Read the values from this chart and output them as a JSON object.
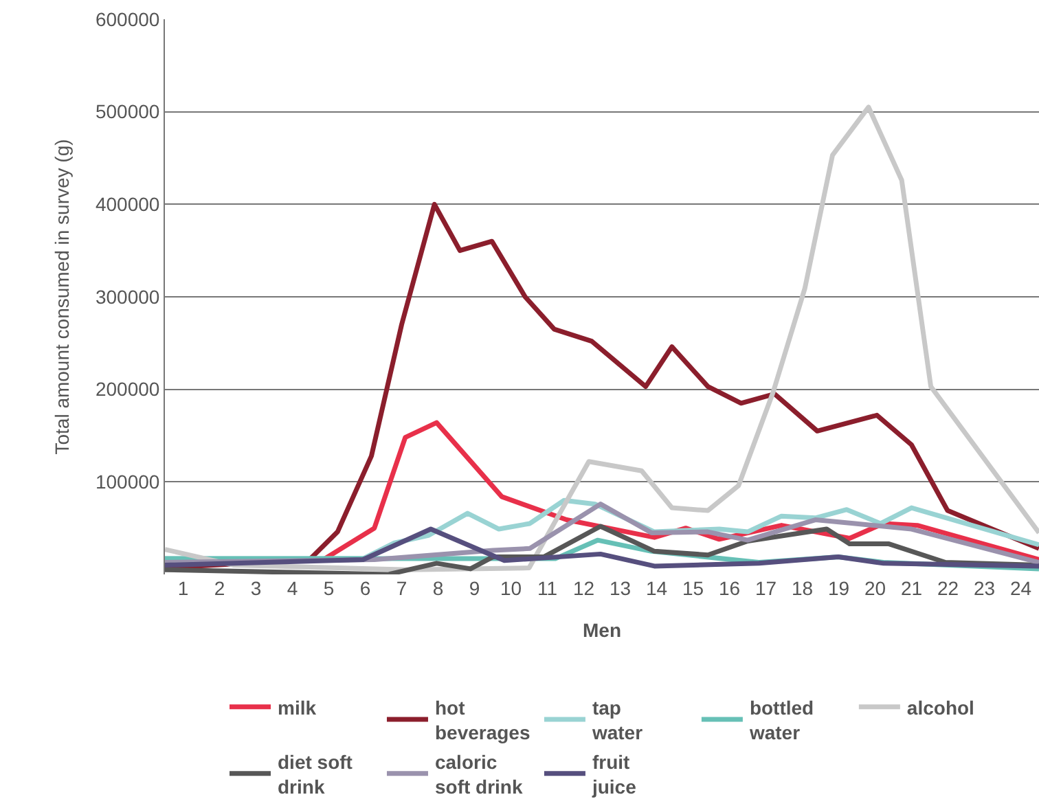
{
  "chart_data": {
    "type": "line",
    "xlabel": "Men",
    "ylabel": "Total amount consumed in survey (g)",
    "xlim": [
      0.5,
      24.5
    ],
    "xticks": [
      1,
      2,
      3,
      4,
      5,
      6,
      7,
      8,
      9,
      10,
      11,
      12,
      13,
      14,
      15,
      16,
      17,
      18,
      19,
      20,
      21,
      22,
      23,
      24
    ],
    "ylim": [
      0,
      600000
    ],
    "yticks": [
      100000,
      200000,
      300000,
      400000,
      500000,
      600000
    ],
    "grid": "y",
    "legend": "bottom",
    "marker": "none",
    "line_style": "solid",
    "series": [
      {
        "name": "milk",
        "color": "#e8304a",
        "x": [
          0.5,
          4.85,
          6.25,
          7.1,
          7.96,
          9.75,
          11.53,
          13.94,
          14.8,
          15.72,
          17.43,
          19.3,
          20.23,
          21.16,
          24.5
        ],
        "values": [
          16000,
          16000,
          50000,
          148000,
          164000,
          84000,
          59000,
          40000,
          50000,
          38000,
          53000,
          39000,
          55000,
          53000,
          16000
        ]
      },
      {
        "name": "hot\nbeverages",
        "color": "#8b1e2c",
        "x": [
          0.5,
          4.47,
          5.24,
          6.17,
          7.0,
          7.9,
          8.6,
          9.48,
          10.39,
          11.19,
          12.22,
          13.7,
          14.42,
          15.41,
          16.32,
          17.24,
          18.41,
          20.05,
          21.0,
          21.99,
          24.5
        ],
        "values": [
          7000,
          16000,
          46000,
          128000,
          270000,
          400000,
          350000,
          360000,
          300000,
          265000,
          252000,
          203000,
          246000,
          203000,
          185000,
          195000,
          155000,
          172000,
          140000,
          69000,
          28000
        ]
      },
      {
        "name": "tap\nwater",
        "color": "#99d3d3",
        "x": [
          0.5,
          5.94,
          6.8,
          7.73,
          8.81,
          9.67,
          10.52,
          11.46,
          12.31,
          13.94,
          15.72,
          16.5,
          17.43,
          18.36,
          19.22,
          20.15,
          21.0,
          24.5
        ],
        "values": [
          17000,
          17000,
          34000,
          42000,
          66000,
          49000,
          55000,
          80000,
          76000,
          46000,
          49000,
          46000,
          63000,
          61000,
          70000,
          55000,
          72000,
          32000
        ]
      },
      {
        "name": "bottled\nwater",
        "color": "#66c0b6",
        "x": [
          0.5,
          11.22,
          12.38,
          13.86,
          16.81,
          18.99,
          20.23,
          24.5
        ],
        "values": [
          17000,
          17000,
          37000,
          25000,
          13000,
          19000,
          13000,
          6000
        ]
      },
      {
        "name": "alcohol",
        "color": "#c8c8c8",
        "x": [
          0.5,
          2.4,
          7.2,
          10.5,
          12.14,
          13.59,
          14.42,
          15.41,
          16.25,
          17.2,
          18.07,
          18.83,
          19.82,
          20.73,
          21.53,
          24.5
        ],
        "values": [
          27000,
          10000,
          5000,
          7000,
          122000,
          112000,
          72000,
          69000,
          96000,
          197000,
          309000,
          453000,
          505000,
          426000,
          203000,
          45000
        ]
      },
      {
        "name": "diet soft\ndrink",
        "color": "#575757",
        "x": [
          0.5,
          6.64,
          7.96,
          8.89,
          9.51,
          10.91,
          12.46,
          13.94,
          15.41,
          16.5,
          18.67,
          19.3,
          20.38,
          21.93,
          24.5
        ],
        "values": [
          5000,
          0,
          12000,
          6000,
          19000,
          19000,
          52000,
          25000,
          21000,
          36000,
          49000,
          33000,
          33000,
          13000,
          10000
        ]
      },
      {
        "name": "caloric\nsoft drink",
        "color": "#9a92ad",
        "x": [
          0.5,
          6.25,
          9.51,
          10.52,
          12.46,
          13.86,
          15.41,
          16.5,
          18.36,
          19.45,
          21.0,
          24.5
        ],
        "values": [
          13000,
          16000,
          26000,
          28000,
          76000,
          45000,
          46000,
          37000,
          59000,
          55000,
          49000,
          13000
        ]
      },
      {
        "name": "fruit\njuice",
        "color": "#564f7e",
        "x": [
          0.5,
          5.94,
          7.8,
          9.82,
          12.46,
          13.94,
          16.81,
          18.99,
          20.23,
          24.5
        ],
        "values": [
          10000,
          16000,
          49000,
          15000,
          22000,
          9000,
          12000,
          19000,
          12000,
          9000
        ]
      }
    ]
  }
}
